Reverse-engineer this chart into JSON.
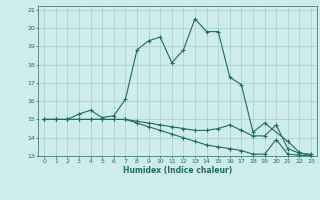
{
  "xlabel": "Humidex (Indice chaleur)",
  "ylabel": "",
  "xlim": [
    -0.5,
    23.5
  ],
  "ylim": [
    13,
    21.2
  ],
  "yticks": [
    13,
    14,
    15,
    16,
    17,
    18,
    19,
    20,
    21
  ],
  "xticks": [
    0,
    1,
    2,
    3,
    4,
    5,
    6,
    7,
    8,
    9,
    10,
    11,
    12,
    13,
    14,
    15,
    16,
    17,
    18,
    19,
    20,
    21,
    22,
    23
  ],
  "background_color": "#ceecea",
  "grid_color": "#aed4d0",
  "line_color": "#1a6e63",
  "line1_x": [
    0,
    1,
    2,
    3,
    4,
    5,
    6,
    7,
    8,
    9,
    10,
    11,
    12,
    13,
    14,
    15,
    16,
    17,
    18,
    19,
    21,
    22,
    23
  ],
  "line1_y": [
    15,
    15,
    15,
    15.3,
    15.5,
    15.1,
    15.2,
    16.1,
    18.8,
    19.3,
    19.5,
    18.1,
    18.8,
    20.5,
    19.8,
    19.8,
    17.3,
    16.9,
    14.3,
    14.8,
    13.8,
    13.2,
    13.0
  ],
  "line2_x": [
    0,
    1,
    2,
    3,
    4,
    5,
    6,
    7,
    8,
    9,
    10,
    11,
    12,
    13,
    14,
    15,
    16,
    17,
    18,
    19,
    20,
    21,
    22,
    23
  ],
  "line2_y": [
    15,
    15,
    15,
    15,
    15,
    15,
    15,
    15,
    14.9,
    14.8,
    14.7,
    14.6,
    14.5,
    14.4,
    14.4,
    14.5,
    14.7,
    14.4,
    14.1,
    14.1,
    14.7,
    13.4,
    13.15,
    13.1
  ],
  "line3_x": [
    0,
    1,
    2,
    3,
    4,
    5,
    6,
    7,
    8,
    9,
    10,
    11,
    12,
    13,
    14,
    15,
    16,
    17,
    18,
    19,
    20,
    21,
    22,
    23
  ],
  "line3_y": [
    15,
    15,
    15,
    15,
    15,
    15,
    15,
    15,
    14.8,
    14.6,
    14.4,
    14.2,
    14.0,
    13.8,
    13.6,
    13.5,
    13.4,
    13.3,
    13.1,
    13.1,
    13.9,
    13.1,
    13.05,
    13.0
  ]
}
